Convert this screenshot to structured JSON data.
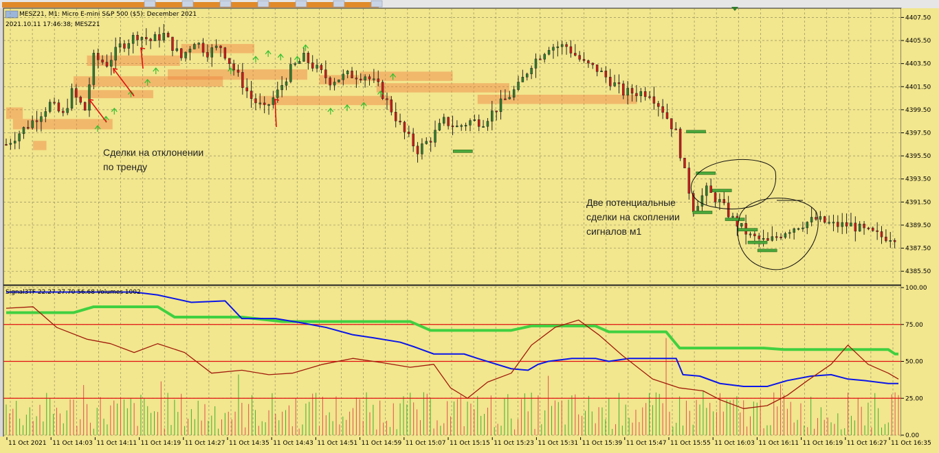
{
  "header": {
    "symbol_line": "MESZ21, M1:  Micro E-mini S&P 500 ($5): December 2021",
    "datetime_line": "2021.10.11 17:46:38; MESZ21"
  },
  "annotations": {
    "left_note": "Сделки на отклонении\nпо тренду",
    "right_note": "Две потенциальные\nсделки на скоплении\nсигналов м1"
  },
  "indicator": {
    "label": "Signal3TF 22.27 27.70 56.68 Volumes 1002"
  },
  "colors": {
    "background": "#f2e68e",
    "grid": "#7a7a55",
    "bull_candle": "#2f7d2f",
    "bear_candle": "#cc1b1b",
    "green_line": "#40d040",
    "blue_line": "#0a16e8",
    "oscillator": "#a01a0a",
    "level_lines": "#e01010",
    "orange_zone": "#f08040"
  },
  "chart_data": [
    {
      "type": "candlestick",
      "y_ticks": [
        "4407.50",
        "4405.50",
        "4403.50",
        "4401.50",
        "4399.50",
        "4397.50",
        "4395.50",
        "4393.50",
        "4391.50",
        "4389.50",
        "4387.50",
        "4385.50"
      ],
      "ylim": [
        4384.5,
        4408.0
      ],
      "x_ticks": [
        "11 Oct 2021",
        "11 Oct 14:03",
        "11 Oct 14:11",
        "11 Oct 14:19",
        "11 Oct 14:27",
        "11 Oct 14:35",
        "11 Oct 14:43",
        "11 Oct 14:51",
        "11 Oct 14:59",
        "11 Oct 15:07",
        "11 Oct 15:15",
        "11 Oct 15:23",
        "11 Oct 15:31",
        "11 Oct 15:39",
        "11 Oct 15:47",
        "11 Oct 15:55",
        "11 Oct 16:03",
        "11 Oct 16:11",
        "11 Oct 16:19",
        "11 Oct 16:27",
        "11 Oct 16:35"
      ],
      "close_path": [
        [
          0,
          4396.5
        ],
        [
          6,
          4398.5
        ],
        [
          10,
          4400.0
        ],
        [
          13,
          4399.0
        ],
        [
          15,
          4401.0
        ],
        [
          18,
          4399.5
        ],
        [
          20,
          4404.0
        ],
        [
          23,
          4403.5
        ],
        [
          26,
          4405.0
        ],
        [
          30,
          4406.0
        ],
        [
          33,
          4405.5
        ],
        [
          36,
          4406.0
        ],
        [
          40,
          4404.0
        ],
        [
          43,
          4405.5
        ],
        [
          46,
          4404.5
        ],
        [
          49,
          4405.0
        ],
        [
          52,
          4403.0
        ],
        [
          56,
          4400.5
        ],
        [
          59,
          4399.5
        ],
        [
          62,
          4401.0
        ],
        [
          65,
          4403.0
        ],
        [
          68,
          4404.0
        ],
        [
          71,
          4403.0
        ],
        [
          74,
          4402.0
        ],
        [
          78,
          4402.5
        ],
        [
          82,
          4402.5
        ],
        [
          85,
          4401.5
        ],
        [
          88,
          4399.5
        ],
        [
          91,
          4397.5
        ],
        [
          94,
          4396.0
        ],
        [
          97,
          4397.0
        ],
        [
          100,
          4398.5
        ],
        [
          103,
          4398.0
        ],
        [
          106,
          4398.5
        ],
        [
          109,
          4398.5
        ],
        [
          113,
          4400.0
        ],
        [
          117,
          4401.5
        ],
        [
          120,
          4403.5
        ],
        [
          124,
          4405.0
        ],
        [
          128,
          4405.0
        ],
        [
          132,
          4403.5
        ],
        [
          135,
          4403.0
        ],
        [
          138,
          4402.0
        ],
        [
          141,
          4401.0
        ],
        [
          144,
          4401.0
        ],
        [
          147,
          4401.0
        ],
        [
          150,
          4399.5
        ],
        [
          153,
          4397.5
        ],
        [
          155,
          4394.0
        ],
        [
          157,
          4391.0
        ],
        [
          160,
          4392.5
        ],
        [
          163,
          4391.5
        ],
        [
          166,
          4390.0
        ],
        [
          170,
          4388.5
        ],
        [
          174,
          4388.0
        ],
        [
          178,
          4389.0
        ],
        [
          181,
          4389.5
        ],
        [
          185,
          4390.0
        ],
        [
          189,
          4389.5
        ],
        [
          193,
          4389.5
        ],
        [
          196,
          4389.0
        ],
        [
          200,
          4388.5
        ]
      ],
      "trade_levels_green": [
        4395.9,
        4397.6,
        4394.0,
        4392.5,
        4390.6,
        4390.0,
        4389.1,
        4388.0,
        4387.3
      ],
      "signal_arrow_rows": [
        4397.5,
        4398.5,
        4399.5,
        4400.5,
        4403.0,
        4404.0
      ]
    },
    {
      "type": "line",
      "name": "Signal3TF",
      "y_ticks": [
        "100.00",
        "75.00",
        "50.00",
        "25.00",
        "0.00"
      ],
      "ylim": [
        0,
        100
      ],
      "levels": [
        75,
        50,
        25
      ],
      "series": [
        {
          "values": [
            [
              0,
              83
            ],
            [
              20,
              83
            ],
            [
              26,
              87
            ],
            [
              45,
              87
            ],
            [
              50,
              80
            ],
            [
              70,
              80
            ],
            [
              82,
              77
            ],
            [
              120,
              77
            ],
            [
              126,
              71
            ],
            [
              150,
              71
            ],
            [
              156,
              74
            ],
            [
              175,
              74
            ],
            [
              179,
              70
            ],
            [
              196,
              70
            ],
            [
              200,
              59
            ],
            [
              225,
              59
            ],
            [
              231,
              58
            ],
            [
              262,
              58
            ],
            [
              264,
              55
            ],
            [
              265,
              55
            ]
          ]
        },
        {
          "values": [
            [
              0,
              97
            ],
            [
              16,
              97
            ],
            [
              38,
              97
            ],
            [
              45,
              95
            ],
            [
              55,
              90
            ],
            [
              65,
              91
            ],
            [
              70,
              79
            ],
            [
              80,
              79
            ],
            [
              88,
              76
            ],
            [
              95,
              73
            ],
            [
              103,
              68
            ],
            [
              109,
              66
            ],
            [
              117,
              63
            ],
            [
              121,
              60
            ],
            [
              127,
              55
            ],
            [
              136,
              55
            ],
            [
              140,
              52
            ],
            [
              150,
              45
            ],
            [
              155,
              44
            ],
            [
              158,
              48
            ],
            [
              161,
              50
            ],
            [
              168,
              52
            ],
            [
              175,
              52
            ],
            [
              179,
              50
            ],
            [
              185,
              52
            ],
            [
              199,
              52
            ],
            [
              201,
              41
            ],
            [
              206,
              40
            ],
            [
              212,
              35
            ],
            [
              219,
              33
            ],
            [
              226,
              33
            ],
            [
              232,
              37
            ],
            [
              239,
              40
            ],
            [
              245,
              41
            ],
            [
              250,
              38
            ],
            [
              255,
              37
            ],
            [
              262,
              35
            ],
            [
              265,
              35
            ]
          ]
        },
        {
          "values": [
            [
              0,
              86
            ],
            [
              8,
              87
            ],
            [
              15,
              73
            ],
            [
              24,
              65
            ],
            [
              31,
              62
            ],
            [
              38,
              56
            ],
            [
              45,
              62
            ],
            [
              53,
              56
            ],
            [
              61,
              42
            ],
            [
              70,
              44
            ],
            [
              78,
              41
            ],
            [
              85,
              42
            ],
            [
              94,
              48
            ],
            [
              103,
              52
            ],
            [
              112,
              49
            ],
            [
              120,
              46
            ],
            [
              127,
              48
            ],
            [
              132,
              32
            ],
            [
              137,
              25
            ],
            [
              143,
              36
            ],
            [
              150,
              42
            ],
            [
              156,
              61
            ],
            [
              163,
              73
            ],
            [
              170,
              78
            ],
            [
              176,
              68
            ],
            [
              183,
              54
            ],
            [
              192,
              38
            ],
            [
              200,
              32
            ],
            [
              207,
              30
            ],
            [
              212,
              24
            ],
            [
              219,
              18
            ],
            [
              226,
              20
            ],
            [
              232,
              27
            ],
            [
              238,
              37
            ],
            [
              245,
              48
            ],
            [
              250,
              61
            ],
            [
              256,
              48
            ],
            [
              262,
              42
            ],
            [
              265,
              38
            ]
          ]
        }
      ]
    }
  ]
}
